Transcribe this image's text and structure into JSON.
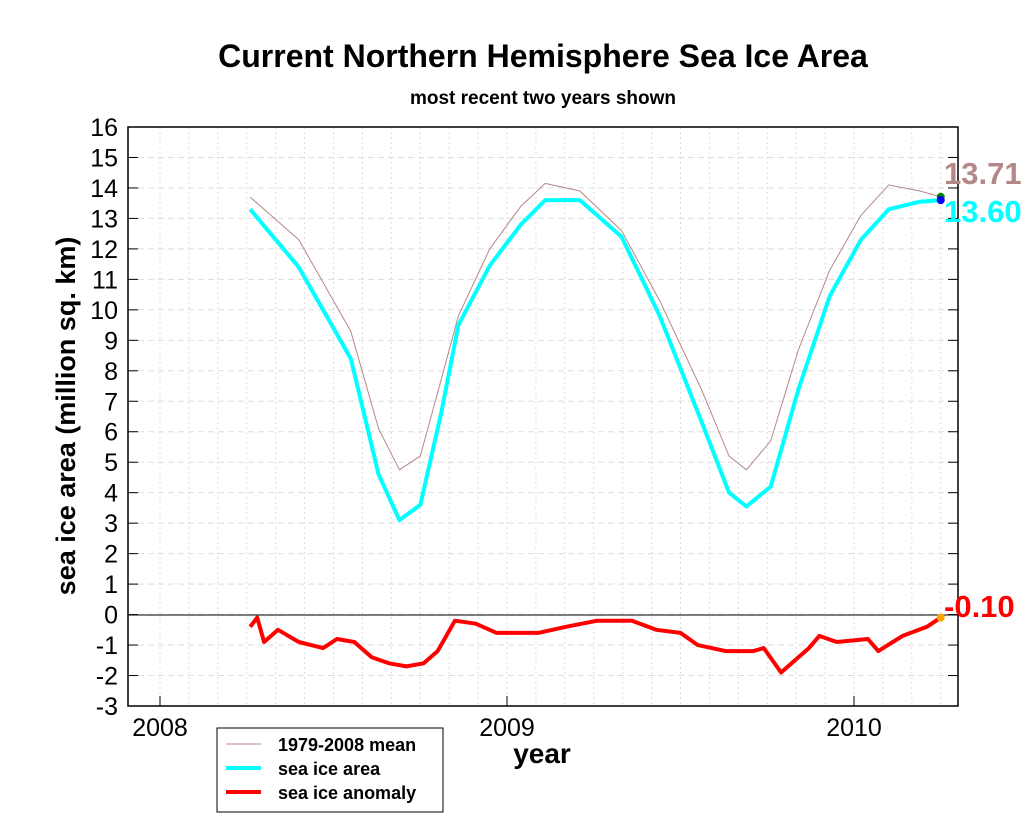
{
  "chart_data": {
    "type": "line",
    "title": "Current Northern Hemisphere Sea Ice Area",
    "subtitle": "most recent two years shown",
    "xlabel": "year",
    "ylabel": "sea ice area (million sq. km)",
    "xlim": [
      2007.9,
      2010.3
    ],
    "ylim": [
      -3,
      16
    ],
    "x_ticks": [
      2008,
      2009,
      2010
    ],
    "y_ticks": [
      16,
      15,
      14,
      13,
      12,
      11,
      10,
      9,
      8,
      7,
      6,
      5,
      4,
      3,
      2,
      1,
      0,
      -1,
      -2,
      -3
    ],
    "grid": true,
    "legend_position": "bottom-left",
    "series": [
      {
        "name": "1979-2008 mean",
        "color": "#b48888",
        "x": [
          2008.26,
          2008.4,
          2008.55,
          2008.63,
          2008.69,
          2008.75,
          2008.81,
          2008.86,
          2008.95,
          2009.04,
          2009.11,
          2009.21,
          2009.33,
          2009.44,
          2009.56,
          2009.64,
          2009.69,
          2009.76,
          2009.84,
          2009.93,
          2010.02,
          2010.1,
          2010.19,
          2010.25
        ],
        "y": [
          13.7,
          12.3,
          9.3,
          6.1,
          4.75,
          5.2,
          7.7,
          9.8,
          12.0,
          13.4,
          14.15,
          13.9,
          12.6,
          10.3,
          7.4,
          5.2,
          4.75,
          5.7,
          8.7,
          11.3,
          13.1,
          14.1,
          13.9,
          13.71
        ]
      },
      {
        "name": "sea ice area",
        "color": "#00ffff",
        "x": [
          2008.26,
          2008.4,
          2008.55,
          2008.63,
          2008.69,
          2008.75,
          2008.81,
          2008.86,
          2008.95,
          2009.04,
          2009.11,
          2009.21,
          2009.33,
          2009.44,
          2009.56,
          2009.64,
          2009.69,
          2009.76,
          2009.84,
          2009.93,
          2010.02,
          2010.1,
          2010.19,
          2010.25
        ],
        "y": [
          13.3,
          11.4,
          8.4,
          4.6,
          3.1,
          3.6,
          6.6,
          9.5,
          11.45,
          12.8,
          13.6,
          13.6,
          12.4,
          9.8,
          6.35,
          4.0,
          3.55,
          4.2,
          7.4,
          10.45,
          12.3,
          13.3,
          13.55,
          13.6
        ]
      },
      {
        "name": "sea ice anomaly",
        "color": "#ff0000",
        "x": [
          2008.26,
          2008.28,
          2008.3,
          2008.34,
          2008.4,
          2008.47,
          2008.51,
          2008.56,
          2008.61,
          2008.66,
          2008.71,
          2008.76,
          2008.8,
          2008.83,
          2008.85,
          2008.91,
          2008.97,
          2009.02,
          2009.09,
          2009.17,
          2009.26,
          2009.36,
          2009.43,
          2009.5,
          2009.55,
          2009.63,
          2009.71,
          2009.74,
          2009.79,
          2009.83,
          2009.87,
          2009.9,
          2009.95,
          2010.04,
          2010.07,
          2010.14,
          2010.21,
          2010.25
        ],
        "y": [
          -0.4,
          -0.1,
          -0.9,
          -0.5,
          -0.9,
          -1.1,
          -0.8,
          -0.9,
          -1.4,
          -1.6,
          -1.7,
          -1.6,
          -1.2,
          -0.6,
          -0.2,
          -0.3,
          -0.6,
          -0.6,
          -0.6,
          -0.4,
          -0.2,
          -0.2,
          -0.5,
          -0.6,
          -1.0,
          -1.2,
          -1.2,
          -1.1,
          -1.9,
          -1.5,
          -1.1,
          -0.7,
          -0.9,
          -0.8,
          -1.2,
          -0.7,
          -0.4,
          -0.1
        ]
      }
    ],
    "end_labels": {
      "mean": "13.71",
      "area": "13.60",
      "anomaly": "-0.10"
    },
    "end_marker_colors": {
      "mean": "#008000",
      "area": "#0000ff",
      "anomaly": "#ffa500"
    }
  }
}
